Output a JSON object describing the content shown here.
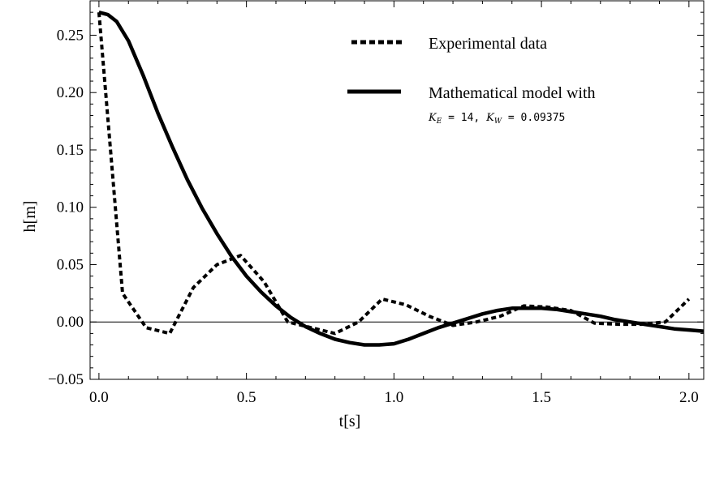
{
  "chart_data": {
    "type": "line",
    "title": "",
    "xlabel": "t[s]",
    "ylabel": "h[m]",
    "xlim": [
      -0.03,
      2.05
    ],
    "ylim": [
      -0.05,
      0.28
    ],
    "xticks": [
      0.0,
      0.5,
      1.0,
      1.5,
      2.0
    ],
    "xtick_labels": [
      "0.0",
      "0.5",
      "1.0",
      "1.5",
      "2.0"
    ],
    "yticks": [
      -0.05,
      0.0,
      0.05,
      0.1,
      0.15,
      0.2,
      0.25
    ],
    "ytick_labels": [
      "−0.05",
      "0.00",
      "0.05",
      "0.10",
      "0.15",
      "0.20",
      "0.25"
    ],
    "grid": false,
    "zero_line": true,
    "legend": {
      "placement": "top-right",
      "model_params": {
        "ke_symbol": "K",
        "ke_sub": "E",
        "ke_value": " = 14, ",
        "kw_symbol": "K",
        "kw_sub": "W",
        "kw_value": " = 0.09375"
      }
    },
    "series": [
      {
        "name": "Experimental data",
        "style": "dotted",
        "color": "#000000",
        "x": [
          0.0,
          0.08,
          0.16,
          0.24,
          0.32,
          0.4,
          0.48,
          0.56,
          0.64,
          0.72,
          0.8,
          0.88,
          0.96,
          1.04,
          1.12,
          1.2,
          1.28,
          1.36,
          1.44,
          1.52,
          1.6,
          1.68,
          1.76,
          1.84,
          1.92,
          2.0
        ],
        "y": [
          0.27,
          0.025,
          -0.005,
          -0.01,
          0.03,
          0.05,
          0.058,
          0.035,
          0.0,
          -0.005,
          -0.01,
          0.0,
          0.02,
          0.015,
          0.005,
          -0.003,
          0.0,
          0.005,
          0.014,
          0.013,
          0.01,
          -0.001,
          -0.002,
          -0.002,
          0.0,
          0.02
        ]
      },
      {
        "name": "Mathematical model with",
        "style": "solid",
        "color": "#000000",
        "x": [
          0.0,
          0.03,
          0.06,
          0.1,
          0.15,
          0.2,
          0.25,
          0.3,
          0.35,
          0.4,
          0.45,
          0.5,
          0.55,
          0.6,
          0.65,
          0.7,
          0.75,
          0.8,
          0.85,
          0.9,
          0.95,
          1.0,
          1.05,
          1.1,
          1.15,
          1.2,
          1.25,
          1.3,
          1.35,
          1.4,
          1.45,
          1.5,
          1.55,
          1.6,
          1.65,
          1.7,
          1.75,
          1.8,
          1.85,
          1.9,
          1.95,
          2.0,
          2.05
        ],
        "y": [
          0.27,
          0.268,
          0.262,
          0.245,
          0.215,
          0.182,
          0.152,
          0.124,
          0.099,
          0.077,
          0.057,
          0.04,
          0.026,
          0.014,
          0.004,
          -0.004,
          -0.01,
          -0.015,
          -0.018,
          -0.02,
          -0.02,
          -0.019,
          -0.015,
          -0.01,
          -0.005,
          -0.001,
          0.003,
          0.007,
          0.01,
          0.012,
          0.012,
          0.012,
          0.011,
          0.009,
          0.007,
          0.005,
          0.002,
          0.0,
          -0.002,
          -0.004,
          -0.006,
          -0.007,
          -0.008
        ]
      }
    ]
  }
}
